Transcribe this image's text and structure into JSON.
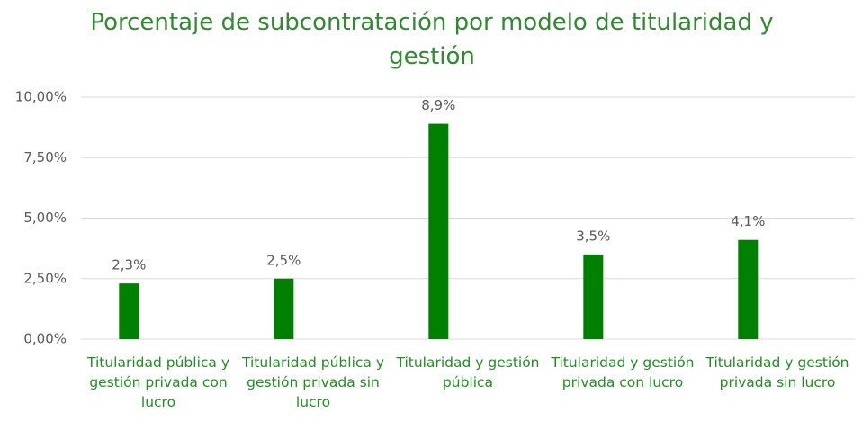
{
  "chart_data": {
    "type": "bar",
    "title": "Porcentaje de subcontratación por modelo de titularidad y gestión",
    "categories": [
      "Titularidad pública y gestión privada con lucro",
      "Titularidad pública y gestión privada sin lucro",
      "Titularidad y gestión pública",
      "Titularidad y gestión privada con lucro",
      "Titularidad y gestión privada sin lucro"
    ],
    "values": [
      2.3,
      2.5,
      8.9,
      3.5,
      4.1
    ],
    "value_labels": [
      "2,3%",
      "2,5%",
      "8,9%",
      "3,5%",
      "4,1%"
    ],
    "color": "#008000",
    "ylim": [
      0,
      10
    ],
    "yticks": [
      {
        "value": 0,
        "label": "0,00%"
      },
      {
        "value": 2.5,
        "label": "2,50%"
      },
      {
        "value": 5,
        "label": "5,00%"
      },
      {
        "value": 7.5,
        "label": "7,50%"
      },
      {
        "value": 10,
        "label": "10,00%"
      }
    ],
    "grid": true
  }
}
